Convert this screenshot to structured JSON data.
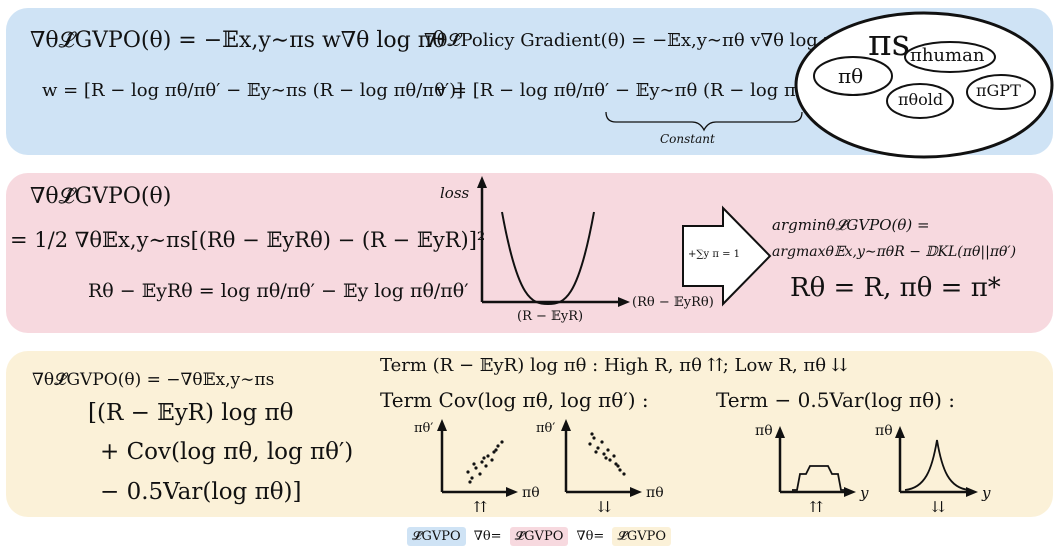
{
  "panel1": {
    "grad_gvpo": "∇θ𝓛̂GVPO(θ) = −𝔼x,y∼πs w∇θ log πθ",
    "w_def": "w = [R − log πθ/πθ′ − 𝔼y∼πs (R − log πθ/πθ′)]",
    "grad_pg": "∇θ𝓛̂Policy Gradient(θ) = −𝔼x,y∼πθ v∇θ log πθ",
    "v_def": "v = [R − log πθ/πθ′ − 𝔼y∼πθ (R − log πθ/πθ′)]",
    "constant_label": "Constant",
    "set_pi_s": "πs",
    "set_pi_theta": "πθ",
    "set_pi_human": "πhuman",
    "set_pi_old": "πθold",
    "set_pi_gpt": "πGPT"
  },
  "panel2": {
    "grad_gvpo": "∇θ𝓛̂GVPO(θ)",
    "loss_eq": "= 1/2 ∇θ𝔼x,y∼πs[(Rθ − 𝔼yRθ) − (R − 𝔼yR)]²",
    "r_theta_def": "Rθ − 𝔼yRθ = log πθ/πθ′ − 𝔼y log πθ/πθ′",
    "plot_ylabel": "loss",
    "plot_xlabel": "(Rθ − 𝔼yRθ)",
    "plot_min_label": "(R − 𝔼yR)",
    "arrow_label": "+∑y π = 1",
    "argmin_line1": "argminθ𝓛̂GVPO(θ) =",
    "argmin_line2": "argmaxθ𝔼x,y∼πθR − 𝔻KL(πθ||πθ′)",
    "optimum": "Rθ = R, πθ = π*"
  },
  "panel3": {
    "grad_gvpo": "∇θ𝓛̂GVPO(θ) = −∇θ𝔼x,y∼πs",
    "term_line1": "[(R − 𝔼yR) log πθ",
    "term_line2": "+ Cov(log πθ, log πθ′)",
    "term_line3": "− 0.5Var(log πθ)]",
    "term1_desc": "Term (R − 𝔼yR) log πθ : High R, πθ ⇈; Low R, πθ ⇊",
    "term2_title": "Term Cov(log πθ, log πθ′) :",
    "term3_title": "Term  − 0.5Var(log πθ) :",
    "scatter_ylabel": "πθ′",
    "scatter_xlabel": "πθ",
    "dist_ylabel": "πθ",
    "dist_xlabel": "y",
    "up_arrow": "⇈",
    "down_arrow": "⇊"
  },
  "legend": {
    "item1": "𝓛̂GVPO",
    "rel1": "∇θ=",
    "item2": "𝓛̂GVPO",
    "rel2": "∇θ=",
    "item3": "𝓛̂GVPO"
  },
  "colors": {
    "blue_panel": "#cfe3f5",
    "red_panel": "#f7d9df",
    "yellow_panel": "#fbf1d8"
  }
}
